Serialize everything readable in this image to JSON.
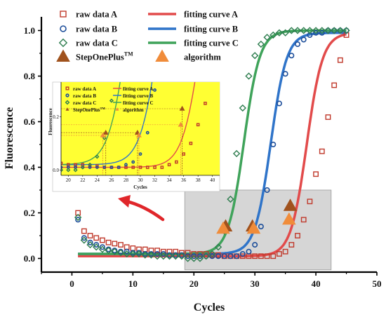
{
  "chart_data": {
    "type": "scatter",
    "xlabel": "Cycles",
    "ylabel": "Fluorescence",
    "xlim": [
      -5,
      50
    ],
    "ylim": [
      -0.06,
      1.06
    ],
    "x_ticks": [
      "0",
      "10",
      "20",
      "30",
      "40",
      "50"
    ],
    "y_ticks": [
      "0.0",
      "0.2",
      "0.4",
      "0.6",
      "0.8",
      "1.0"
    ],
    "grid": false,
    "legend": {
      "placement": "top-left",
      "items": [
        {
          "label": "raw data A",
          "marker": "open-square",
          "color": "#c0392b"
        },
        {
          "label": "fitting curve A",
          "marker": "line",
          "color": "#e24b4b"
        },
        {
          "label": "raw data B",
          "marker": "open-circle",
          "color": "#1d4e9a"
        },
        {
          "label": "fitting curve B",
          "marker": "line",
          "color": "#2f74c9"
        },
        {
          "label": "raw data C",
          "marker": "open-diamond",
          "color": "#2e7d4f"
        },
        {
          "label": "fitting curve C",
          "marker": "line",
          "color": "#3fa35a"
        },
        {
          "label": "StepOnePlus",
          "superscript": "TM",
          "marker": "triangle",
          "color": "#a0521d"
        },
        {
          "label": "algorithm",
          "marker": "triangle",
          "color": "#f08c3a"
        }
      ]
    },
    "series": [
      {
        "name": "raw data A",
        "color": "#c0392b",
        "marker": "open-square",
        "x": [
          1,
          2,
          3,
          4,
          5,
          6,
          7,
          8,
          9,
          10,
          11,
          12,
          13,
          14,
          15,
          16,
          17,
          18,
          19,
          20,
          21,
          22,
          23,
          24,
          25,
          26,
          27,
          28,
          29,
          30,
          31,
          32,
          33,
          34,
          35,
          36,
          37,
          38,
          39,
          40,
          41,
          42,
          43,
          44,
          45
        ],
        "y": [
          0.2,
          0.12,
          0.1,
          0.09,
          0.08,
          0.07,
          0.065,
          0.06,
          0.05,
          0.045,
          0.04,
          0.04,
          0.035,
          0.035,
          0.03,
          0.03,
          0.03,
          0.025,
          0.025,
          0.02,
          0.02,
          0.02,
          0.015,
          0.015,
          0.01,
          0.01,
          0.01,
          0.01,
          0.01,
          0.01,
          0.01,
          0.01,
          0.01,
          0.02,
          0.03,
          0.06,
          0.1,
          0.17,
          0.25,
          0.37,
          0.47,
          0.62,
          0.76,
          0.87,
          0.98
        ]
      },
      {
        "name": "raw data B",
        "color": "#1d4e9a",
        "marker": "open-circle",
        "x": [
          1,
          2,
          3,
          4,
          5,
          6,
          7,
          8,
          9,
          10,
          11,
          12,
          13,
          14,
          15,
          16,
          17,
          18,
          19,
          20,
          21,
          22,
          23,
          24,
          25,
          26,
          27,
          28,
          29,
          30,
          31,
          32,
          33,
          34,
          35,
          36,
          37,
          38,
          39,
          40,
          41,
          42,
          43,
          44,
          45
        ],
        "y": [
          0.17,
          0.09,
          0.07,
          0.06,
          0.05,
          0.04,
          0.035,
          0.03,
          0.03,
          0.025,
          0.025,
          0.02,
          0.02,
          0.02,
          0.02,
          0.015,
          0.015,
          0.015,
          0.01,
          0.01,
          0.01,
          0.01,
          0.01,
          0.01,
          0.01,
          0.01,
          0.01,
          0.02,
          0.03,
          0.06,
          0.14,
          0.3,
          0.5,
          0.68,
          0.81,
          0.89,
          0.94,
          0.96,
          0.98,
          0.99,
          0.99,
          1.0,
          1.0,
          1.0,
          1.0
        ]
      },
      {
        "name": "raw data C",
        "color": "#2e7d4f",
        "marker": "open-diamond",
        "x": [
          1,
          2,
          3,
          4,
          5,
          6,
          7,
          8,
          9,
          10,
          11,
          12,
          13,
          14,
          15,
          16,
          17,
          18,
          19,
          20,
          21,
          22,
          23,
          24,
          25,
          26,
          27,
          28,
          29,
          30,
          31,
          32,
          33,
          34,
          35,
          36,
          37,
          38,
          39,
          40,
          41,
          42,
          43,
          44,
          45
        ],
        "y": [
          0.18,
          0.08,
          0.06,
          0.05,
          0.04,
          0.035,
          0.03,
          0.025,
          0.02,
          0.02,
          0.02,
          0.015,
          0.015,
          0.01,
          0.01,
          0.01,
          0.01,
          0.01,
          0.0,
          0.0,
          0.0,
          0.01,
          0.02,
          0.05,
          0.12,
          0.26,
          0.46,
          0.66,
          0.8,
          0.89,
          0.94,
          0.97,
          0.98,
          0.99,
          0.99,
          1.0,
          1.0,
          1.0,
          1.0,
          1.0,
          1.0,
          1.0,
          1.0,
          1.0,
          1.0
        ]
      },
      {
        "name": "fitting curve A",
        "type": "line",
        "color": "#e24b4b",
        "baseline": 0.01,
        "top": 0.99,
        "midpoint": 38.5,
        "slope": 1.3
      },
      {
        "name": "fitting curve B",
        "type": "line",
        "color": "#2f74c9",
        "baseline": 0.02,
        "top": 0.99,
        "midpoint": 32.6,
        "slope": 1.3
      },
      {
        "name": "fitting curve C",
        "type": "line",
        "color": "#3fa35a",
        "baseline": 0.02,
        "top": 1.0,
        "midpoint": 28.2,
        "slope": 1.3
      }
    ],
    "threshold_points": [
      {
        "name": "StepOnePlus",
        "color": "#a0521d",
        "x": [
          25.2,
          29.6,
          35.8
        ],
        "y": [
          0.14,
          0.14,
          0.23
        ]
      },
      {
        "name": "algorithm",
        "color": "#f08c3a",
        "x": [
          24.8,
          29.8,
          35.6
        ],
        "y": [
          0.13,
          0.13,
          0.17
        ]
      }
    ],
    "highlight_region": {
      "x": [
        18.5,
        42.5
      ],
      "y": [
        -0.05,
        0.3
      ],
      "color": "#c8c8c8"
    },
    "inset": {
      "background": "#ffff33",
      "x_ticks": [
        "20",
        "22",
        "24",
        "26",
        "28",
        "30",
        "32",
        "34",
        "36",
        "38",
        "40"
      ],
      "xlim": [
        19,
        41
      ],
      "ylim": [
        -0.02,
        0.33
      ],
      "y_ticks": [
        "0.0",
        "0.2"
      ],
      "xlabel": "Cycles",
      "ylabel": "Fluorescence",
      "legend_labels": {
        "raw_a": "raw data A",
        "raw_b": "raw data B",
        "raw_c": "raw data C",
        "fit_a": "fitting curve A",
        "fit_b": "fitting curve B",
        "fit_c": "fitting curve C",
        "step": "StepOnePlus",
        "step_sup": "TM",
        "algo": "algorithm"
      }
    },
    "arrow_color": "#e0262a"
  }
}
